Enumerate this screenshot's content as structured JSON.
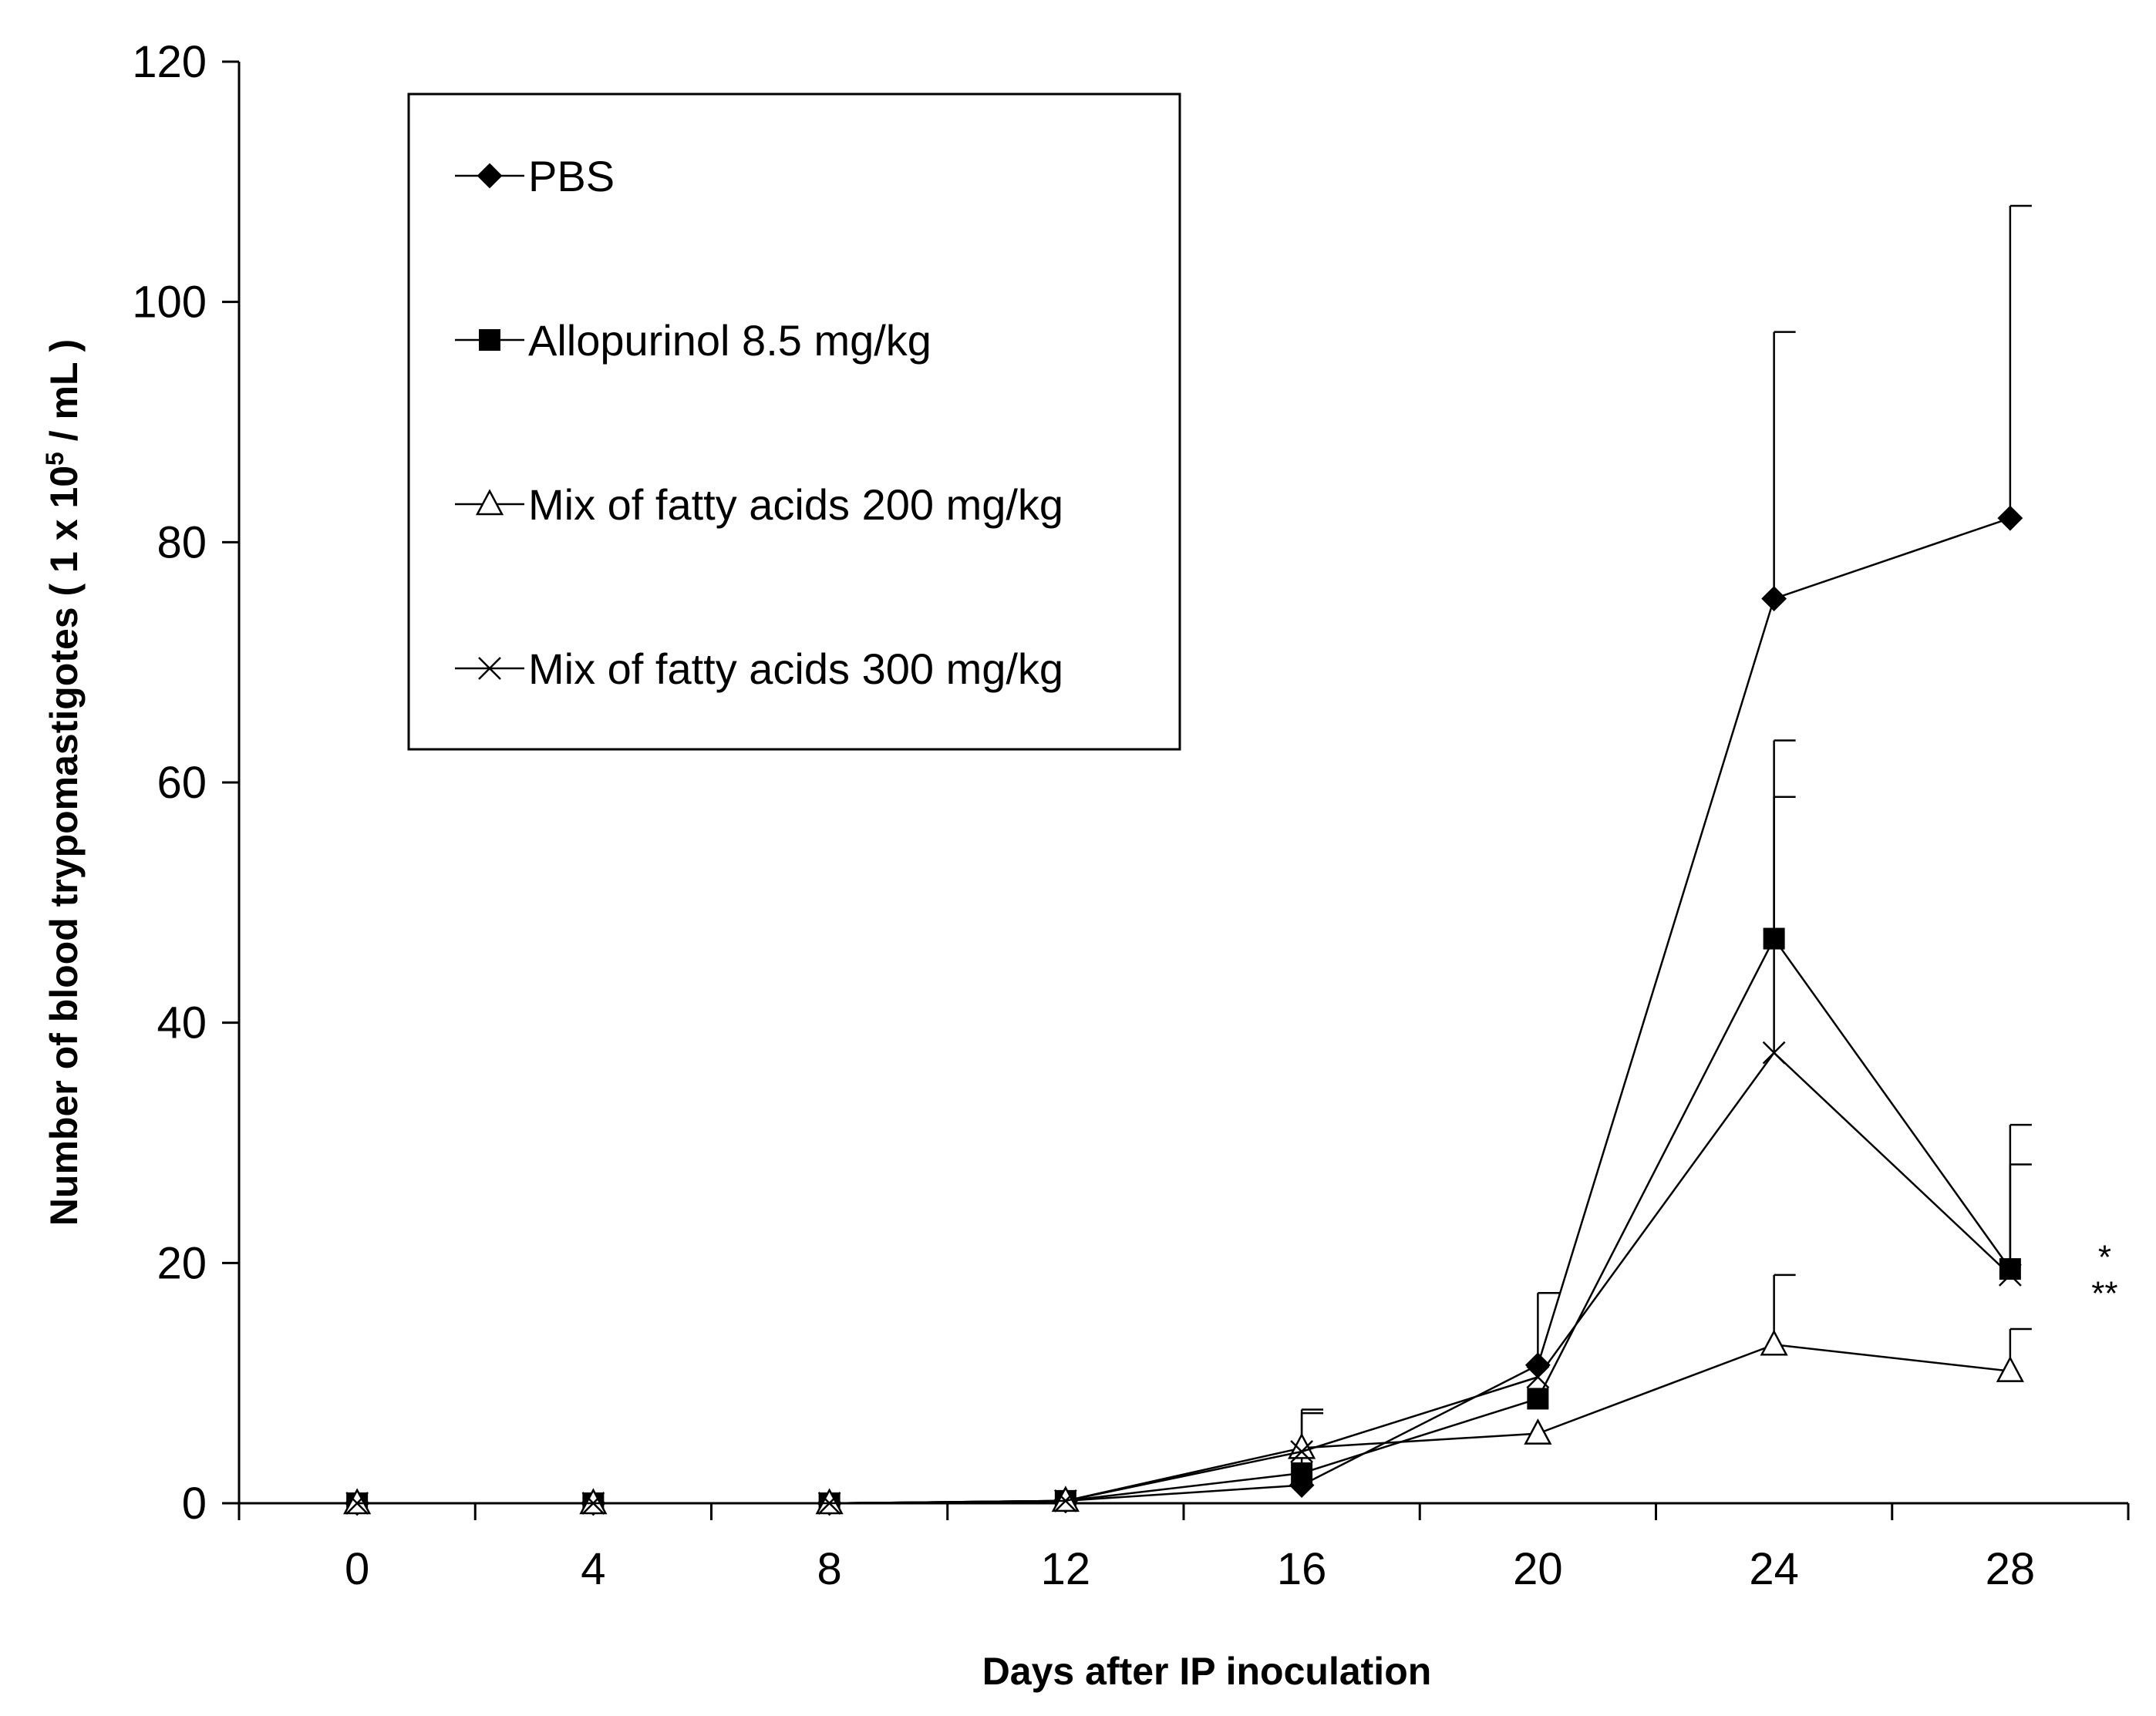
{
  "chart_data": {
    "type": "line",
    "xlabel": "Days after IP inoculation",
    "ylabel": {
      "prefix": "Number of blood trypomastigotes ( 1 x 10",
      "superscript": "5",
      "suffix": " / mL )"
    },
    "x": [
      0,
      4,
      8,
      12,
      16,
      20,
      24,
      28
    ],
    "xticks": [
      "0",
      "4",
      "8",
      "12",
      "16",
      "20",
      "24",
      "28"
    ],
    "xlim": [
      -2,
      30
    ],
    "ylim": [
      0,
      120
    ],
    "yticks": [
      "0",
      "20",
      "40",
      "60",
      "80",
      "100",
      "120"
    ],
    "grid": false,
    "legend_position": "top-left",
    "series": [
      {
        "name": "PBS",
        "marker": "filled-diamond",
        "values": [
          0,
          0,
          0,
          0.2,
          1.5,
          11.5,
          75.3,
          82
        ],
        "error_upper": [
          0,
          0,
          0,
          0,
          7.5,
          17.5,
          97.5,
          108
        ]
      },
      {
        "name": "Allopurinol 8.5 mg/kg",
        "marker": "filled-square",
        "values": [
          0,
          0,
          0,
          0.2,
          2.5,
          8.7,
          47,
          19.5
        ],
        "error_upper": [
          0,
          0,
          0,
          0,
          0,
          0,
          63.5,
          31.5
        ]
      },
      {
        "name": "Mix of fatty acids 200 mg/kg",
        "marker": "open-triangle",
        "values": [
          0,
          0,
          0,
          0.2,
          4.6,
          5.8,
          13.2,
          11
        ],
        "error_upper": [
          0,
          0,
          0,
          0,
          7.8,
          0,
          19,
          14.5
        ]
      },
      {
        "name": "Mix of fatty acids 300 mg/kg",
        "marker": "x-cross",
        "values": [
          0,
          0,
          0,
          0.2,
          4.3,
          10.5,
          37.5,
          19
        ],
        "error_upper": [
          0,
          0,
          0,
          0,
          0,
          0,
          58.8,
          28.2
        ]
      }
    ],
    "annotations": [
      {
        "text": "*",
        "x": 29.6,
        "y": 20.5
      },
      {
        "text": "**",
        "x": 29.6,
        "y": 17.5
      }
    ]
  }
}
